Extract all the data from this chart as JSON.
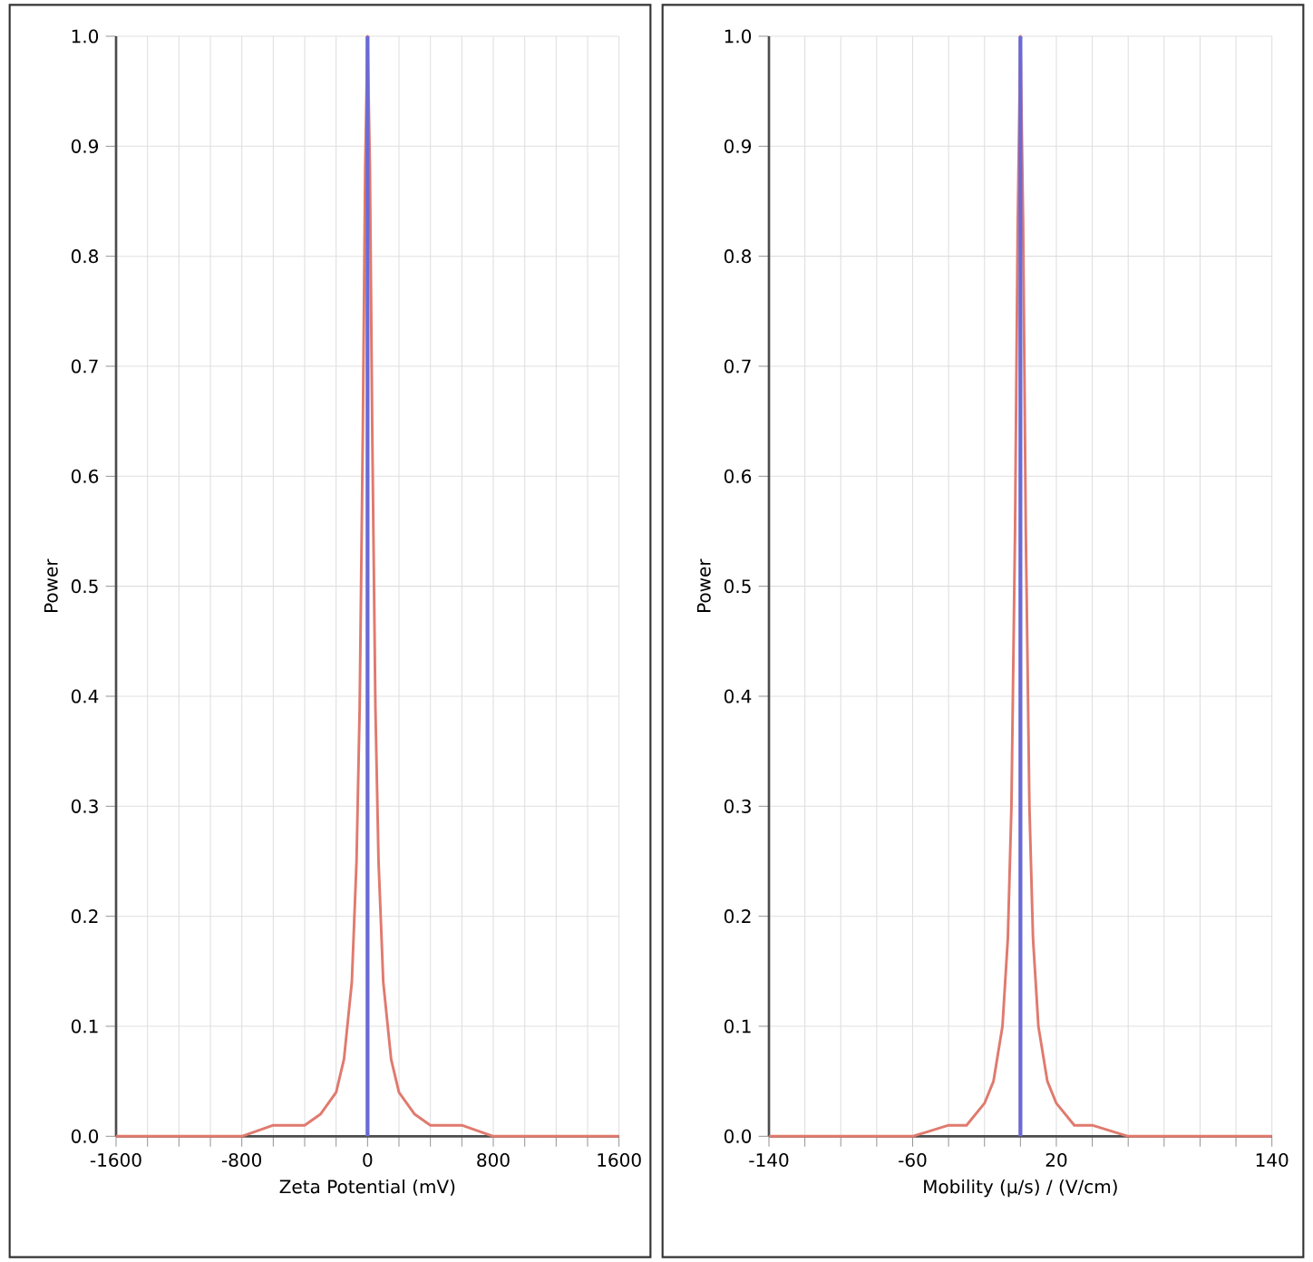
{
  "chart_data": [
    {
      "type": "line",
      "xlabel": "Zeta Potential (mV)",
      "ylabel": "Power",
      "xlim": [
        -1600,
        1600
      ],
      "ylim": [
        0,
        1
      ],
      "xticks": [
        -1600,
        {
          "value": -1400,
          "label": null
        },
        {
          "value": -1200,
          "label": null
        },
        {
          "value": -1000,
          "label": null
        },
        -800,
        {
          "value": -600,
          "label": null
        },
        {
          "value": -400,
          "label": null
        },
        {
          "value": -200,
          "label": null
        },
        0,
        {
          "value": 200,
          "label": null
        },
        {
          "value": 400,
          "label": null
        },
        {
          "value": 600,
          "label": null
        },
        800,
        {
          "value": 1000,
          "label": null
        },
        {
          "value": 1200,
          "label": null
        },
        {
          "value": 1400,
          "label": null
        },
        1600
      ],
      "yticks": [
        {
          "value": 0,
          "label": "0.0"
        },
        {
          "value": 0.1,
          "label": "0.1"
        },
        {
          "value": 0.2,
          "label": "0.2"
        },
        {
          "value": 0.3,
          "label": "0.3"
        },
        {
          "value": 0.4,
          "label": "0.4"
        },
        {
          "value": 0.5,
          "label": "0.5"
        },
        {
          "value": 0.6,
          "label": "0.6"
        },
        {
          "value": 0.7,
          "label": "0.7"
        },
        {
          "value": 0.8,
          "label": "0.8"
        },
        {
          "value": 0.9,
          "label": "0.9"
        },
        {
          "value": 1,
          "label": "1.0"
        }
      ],
      "grid": true,
      "series": [
        {
          "color": "#e07a6e",
          "x": [
            -1600,
            -1200,
            -800,
            -600,
            -400,
            -300,
            -200,
            -150,
            -100,
            -70,
            -50,
            -30,
            -15,
            0,
            15,
            30,
            50,
            70,
            100,
            150,
            200,
            300,
            400,
            600,
            800,
            1200,
            1600
          ],
          "values": [
            0.0,
            0.0,
            0.0,
            0.01,
            0.01,
            0.02,
            0.04,
            0.07,
            0.14,
            0.25,
            0.39,
            0.64,
            0.88,
            1.0,
            0.88,
            0.64,
            0.39,
            0.25,
            0.14,
            0.07,
            0.04,
            0.02,
            0.01,
            0.01,
            0.0,
            0.0,
            0.0
          ]
        },
        {
          "color": "#6a6ad6",
          "x": [
            0,
            0
          ],
          "values": [
            0,
            1
          ]
        }
      ]
    },
    {
      "type": "line",
      "xlabel": "Mobility (µ/s) / (V/cm)",
      "ylabel": "Power",
      "xlim": [
        -140,
        140
      ],
      "ylim": [
        0,
        1
      ],
      "xticks": [
        -140,
        {
          "value": -120,
          "label": null
        },
        {
          "value": -100,
          "label": null
        },
        {
          "value": -80,
          "label": null
        },
        -60,
        {
          "value": -40,
          "label": null
        },
        {
          "value": -20,
          "label": null
        },
        {
          "value": 0,
          "label": null
        },
        20,
        {
          "value": 40,
          "label": null
        },
        {
          "value": 60,
          "label": null
        },
        {
          "value": 80,
          "label": null
        },
        {
          "value": 100,
          "label": null
        },
        {
          "value": 120,
          "label": null
        },
        140
      ],
      "yticks": [
        {
          "value": 0,
          "label": "0.0"
        },
        {
          "value": 0.1,
          "label": "0.1"
        },
        {
          "value": 0.2,
          "label": "0.2"
        },
        {
          "value": 0.3,
          "label": "0.3"
        },
        {
          "value": 0.4,
          "label": "0.4"
        },
        {
          "value": 0.5,
          "label": "0.5"
        },
        {
          "value": 0.6,
          "label": "0.6"
        },
        {
          "value": 0.7,
          "label": "0.7"
        },
        {
          "value": 0.8,
          "label": "0.8"
        },
        {
          "value": 0.9,
          "label": "0.9"
        },
        {
          "value": 1,
          "label": "1.0"
        }
      ],
      "grid": true,
      "series": [
        {
          "color": "#e07a6e",
          "x": [
            -140,
            -100,
            -60,
            -40,
            -30,
            -20,
            -15,
            -10,
            -7,
            -5,
            -3,
            -1.5,
            0,
            1.5,
            3,
            5,
            7,
            10,
            15,
            20,
            30,
            40,
            60,
            100,
            140
          ],
          "values": [
            0.0,
            0.0,
            0.0,
            0.01,
            0.01,
            0.03,
            0.05,
            0.1,
            0.18,
            0.3,
            0.55,
            0.83,
            1.0,
            0.83,
            0.55,
            0.3,
            0.18,
            0.1,
            0.05,
            0.03,
            0.01,
            0.01,
            0.0,
            0.0,
            0.0
          ]
        },
        {
          "color": "#6a6ad6",
          "x": [
            0,
            0
          ],
          "values": [
            0,
            1
          ]
        }
      ]
    }
  ]
}
